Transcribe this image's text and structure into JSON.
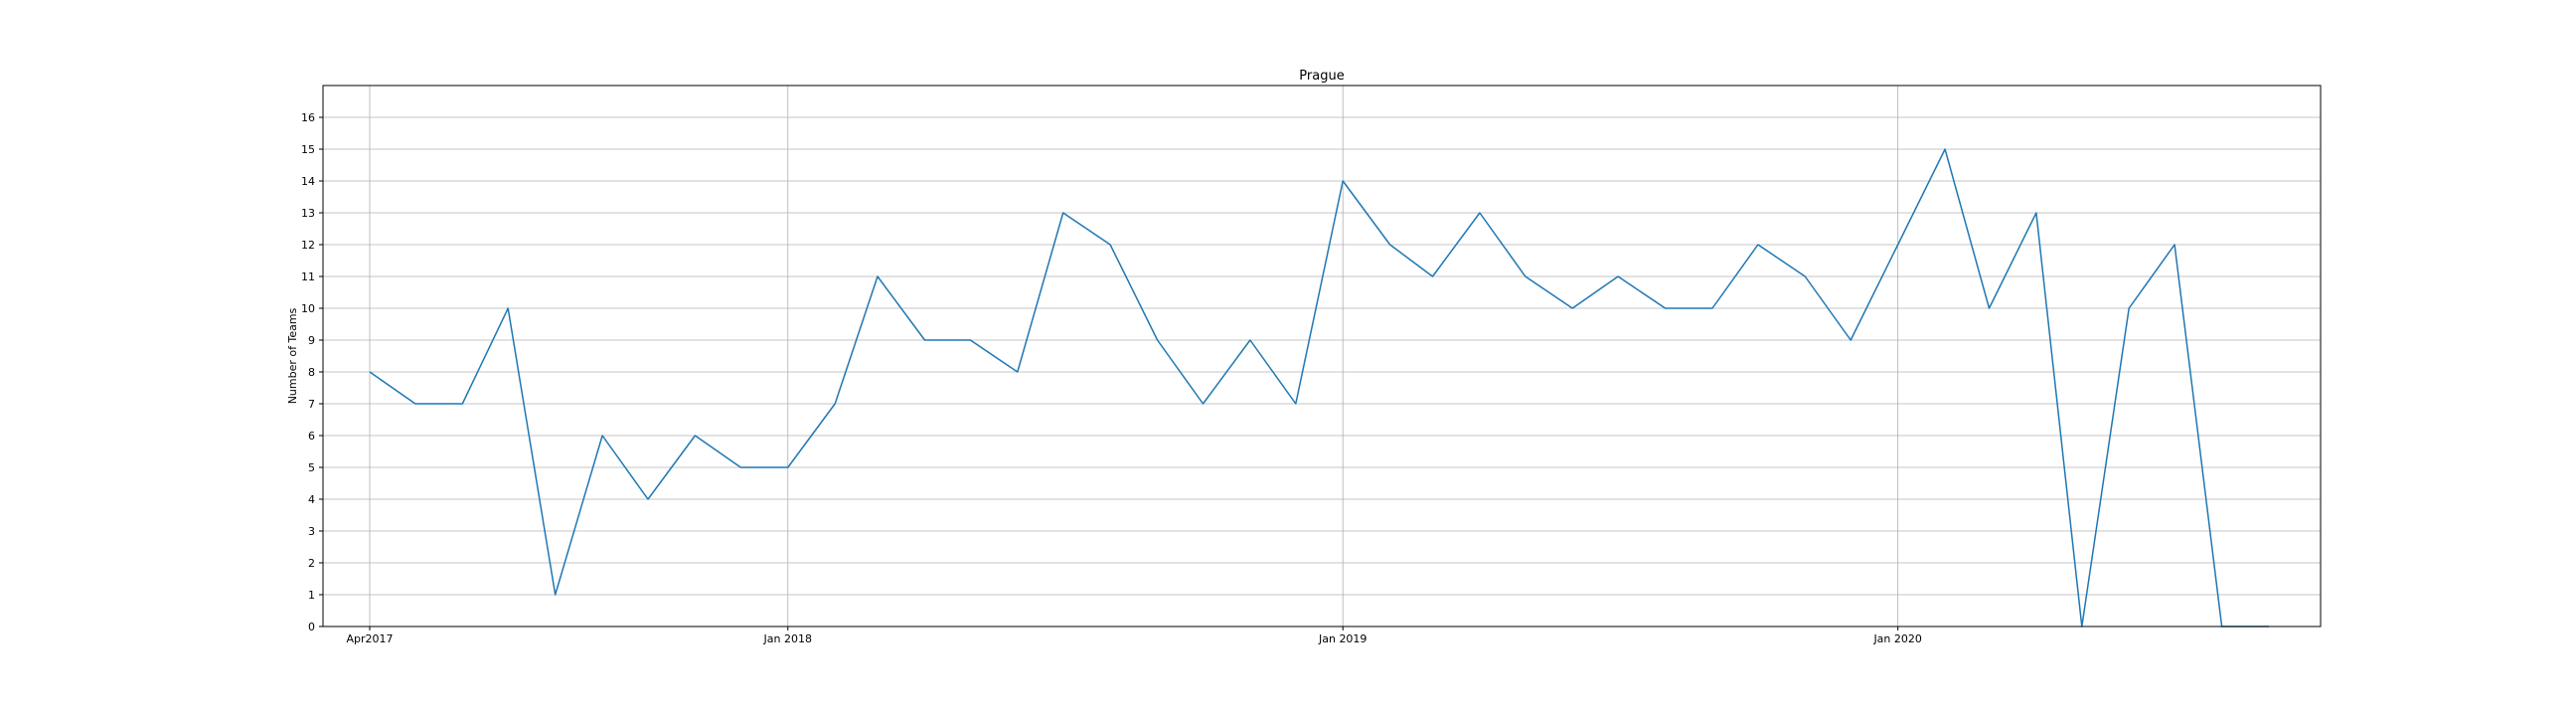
{
  "chart_data": {
    "type": "line",
    "title": "Prague",
    "xlabel": "",
    "ylabel": "Number of Teams",
    "ylim": [
      0,
      17
    ],
    "yticks": [
      0,
      1,
      2,
      3,
      4,
      5,
      6,
      7,
      8,
      9,
      10,
      11,
      12,
      13,
      14,
      15,
      16
    ],
    "xlim": [
      "2017-03-01",
      "2020-08-01"
    ],
    "xticks": [
      {
        "date": "2017-04-01",
        "label": "Apr2017"
      },
      {
        "date": "2018-01-01",
        "label": "Jan 2018"
      },
      {
        "date": "2019-01-01",
        "label": "Jan 2019"
      },
      {
        "date": "2020-01-01",
        "label": "Jan 2020"
      }
    ],
    "grid": true,
    "series": [
      {
        "color": "#1f77b4",
        "x": [
          "2017-04-01",
          "2017-05-01",
          "2017-06-01",
          "2017-07-01",
          "2017-08-01",
          "2017-09-01",
          "2017-10-01",
          "2017-11-01",
          "2017-12-01",
          "2018-01-01",
          "2018-02-01",
          "2018-03-01",
          "2018-04-01",
          "2018-05-01",
          "2018-06-01",
          "2018-07-01",
          "2018-08-01",
          "2018-09-01",
          "2018-10-01",
          "2018-11-01",
          "2018-12-01",
          "2019-01-01",
          "2019-02-01",
          "2019-03-01",
          "2019-04-01",
          "2019-05-01",
          "2019-06-01",
          "2019-07-01",
          "2019-08-01",
          "2019-09-01",
          "2019-10-01",
          "2019-11-01",
          "2019-12-01",
          "2020-01-01",
          "2020-02-01",
          "2020-03-01",
          "2020-04-01",
          "2020-05-01",
          "2020-06-01",
          "2020-07-01",
          "2020-08-01",
          "2020-09-01"
        ],
        "values": [
          8,
          7,
          7,
          10,
          1,
          6,
          4,
          6,
          5,
          5,
          7,
          11,
          9,
          9,
          8,
          13,
          12,
          9,
          7,
          9,
          7,
          14,
          12,
          11,
          13,
          11,
          10,
          11,
          10,
          10,
          12,
          11,
          9,
          12,
          15,
          10,
          13,
          0,
          10,
          12,
          0,
          0
        ]
      }
    ]
  }
}
